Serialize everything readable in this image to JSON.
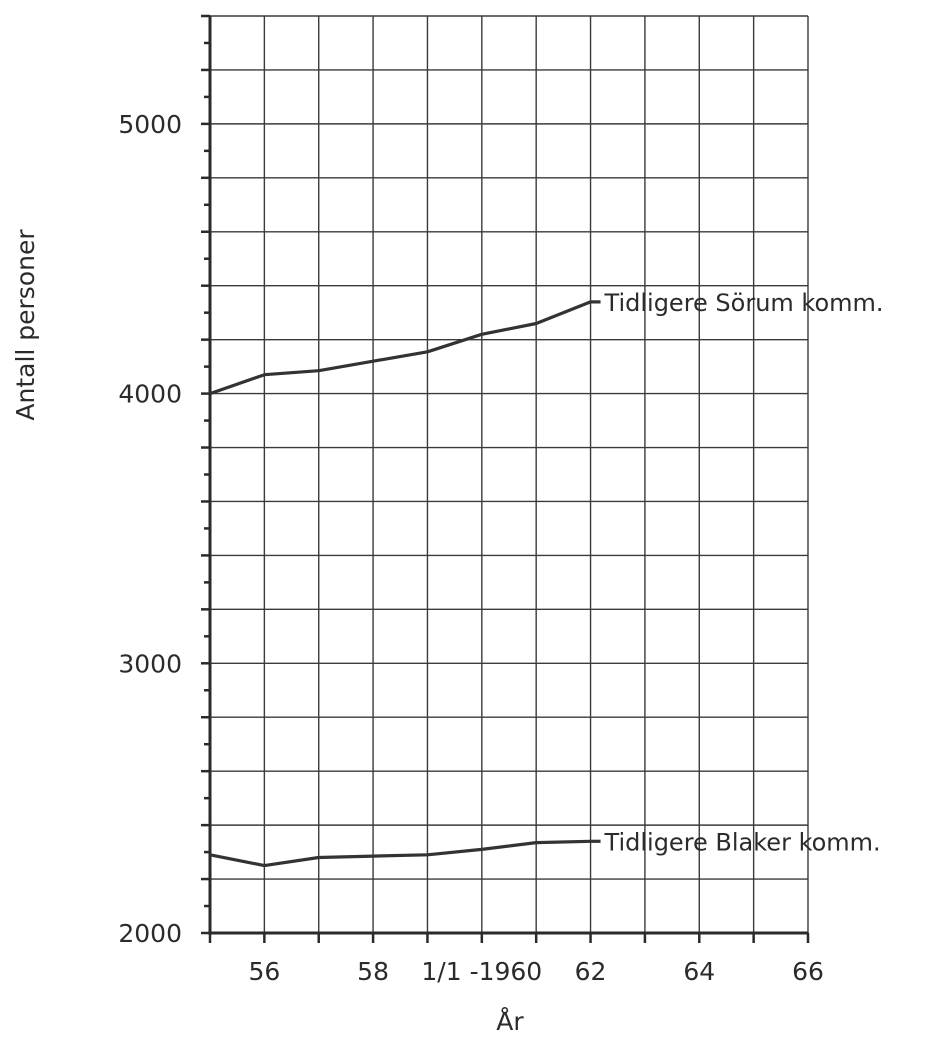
{
  "chart_data": {
    "type": "line",
    "title": "",
    "xlabel": "År",
    "ylabel": "Antall personer",
    "xlim": [
      55,
      66
    ],
    "ylim": [
      2000,
      5400
    ],
    "grid": true,
    "x_ticks": [
      {
        "value": 56,
        "label": "56"
      },
      {
        "value": 58,
        "label": "58"
      },
      {
        "value": 60,
        "label": "1/1 -1960"
      },
      {
        "value": 62,
        "label": "62"
      },
      {
        "value": 64,
        "label": "64"
      },
      {
        "value": 66,
        "label": "66"
      }
    ],
    "y_ticks": [
      {
        "value": 2000,
        "label": "2000"
      },
      {
        "value": 3000,
        "label": "3000"
      },
      {
        "value": 4000,
        "label": "4000"
      },
      {
        "value": 5000,
        "label": "5000"
      }
    ],
    "series": [
      {
        "name": "Tidligere Sörum komm.",
        "x": [
          55,
          56,
          57,
          58,
          59,
          60,
          61,
          62
        ],
        "values": [
          4000,
          4070,
          4085,
          4120,
          4155,
          4220,
          4260,
          4340
        ]
      },
      {
        "name": "Tidligere Blaker komm.",
        "x": [
          55,
          56,
          57,
          58,
          59,
          60,
          61,
          62
        ],
        "values": [
          2290,
          2250,
          2280,
          2285,
          2290,
          2310,
          2335,
          2340
        ]
      }
    ]
  }
}
